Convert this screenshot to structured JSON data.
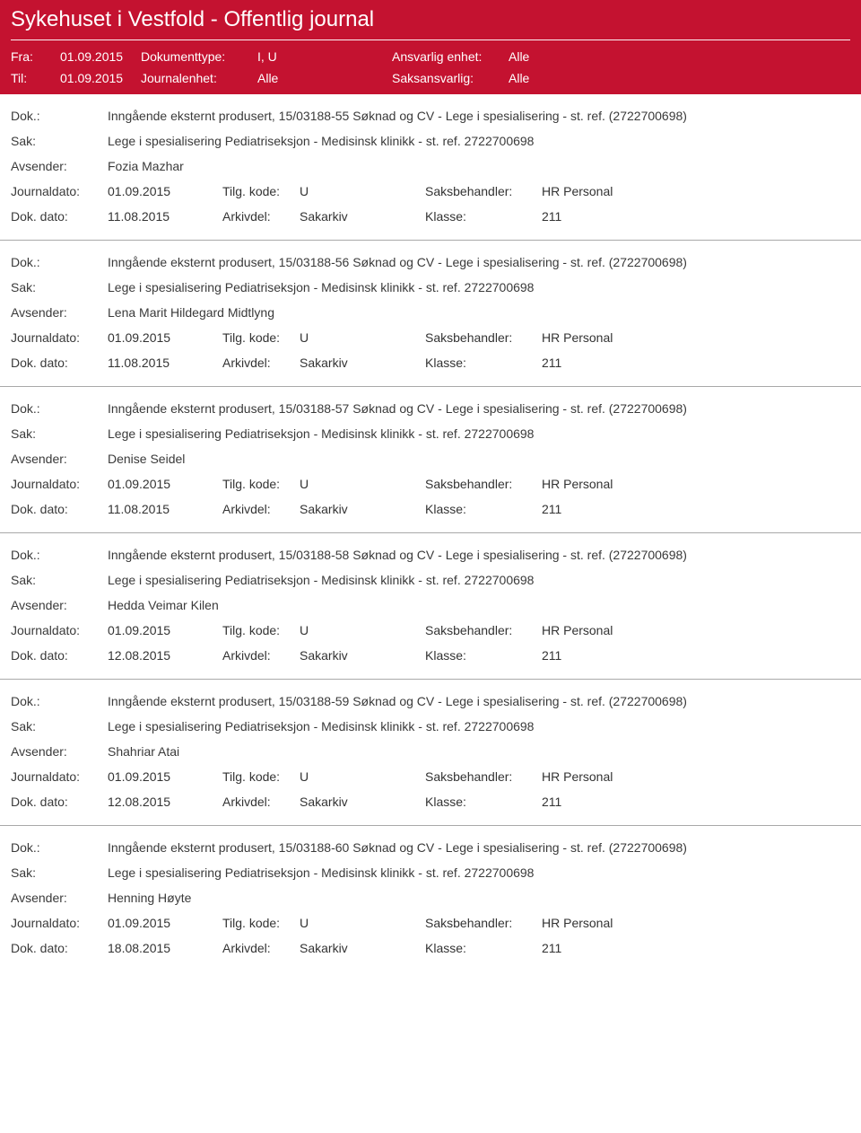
{
  "colors": {
    "header_bg": "#c41230",
    "header_text": "#ffffff",
    "body_text": "#3a3a3a",
    "divider": "#a9a9a9"
  },
  "header": {
    "title": "Sykehuset i Vestfold - Offentlig journal",
    "fra_label": "Fra:",
    "fra_value": "01.09.2015",
    "til_label": "Til:",
    "til_value": "01.09.2015",
    "doktype_label": "Dokumenttype:",
    "doktype_value": "I, U",
    "journalenhet_label": "Journalenhet:",
    "journalenhet_value": "Alle",
    "ansvarlig_label": "Ansvarlig enhet:",
    "ansvarlig_value": "Alle",
    "saksansvarlig_label": "Saksansvarlig:",
    "saksansvarlig_value": "Alle"
  },
  "labels": {
    "dok": "Dok.:",
    "sak": "Sak:",
    "avsender": "Avsender:",
    "journaldato": "Journaldato:",
    "tilgkode": "Tilg. kode:",
    "saksbehandler": "Saksbehandler:",
    "dokdato": "Dok. dato:",
    "arkivdel": "Arkivdel:",
    "klasse": "Klasse:"
  },
  "entries": [
    {
      "dok": "Inngående eksternt produsert, 15/03188-55 Søknad og CV - Lege i spesialisering - st. ref. (2722700698)",
      "sak": "Lege i spesialisering Pediatriseksjon - Medisinsk klinikk - st. ref. 2722700698",
      "avsender": "Fozia Mazhar",
      "journaldato": "01.09.2015",
      "tilgkode": "U",
      "saksbehandler": "HR Personal",
      "dokdato": "11.08.2015",
      "arkivdel": "Sakarkiv",
      "klasse": "211"
    },
    {
      "dok": "Inngående eksternt produsert, 15/03188-56 Søknad og CV - Lege i spesialisering - st. ref. (2722700698)",
      "sak": "Lege i spesialisering Pediatriseksjon - Medisinsk klinikk - st. ref. 2722700698",
      "avsender": "Lena Marit Hildegard Midtlyng",
      "journaldato": "01.09.2015",
      "tilgkode": "U",
      "saksbehandler": "HR Personal",
      "dokdato": "11.08.2015",
      "arkivdel": "Sakarkiv",
      "klasse": "211"
    },
    {
      "dok": "Inngående eksternt produsert, 15/03188-57 Søknad og CV - Lege i spesialisering - st. ref. (2722700698)",
      "sak": "Lege i spesialisering Pediatriseksjon - Medisinsk klinikk - st. ref. 2722700698",
      "avsender": "Denise Seidel",
      "journaldato": "01.09.2015",
      "tilgkode": "U",
      "saksbehandler": "HR Personal",
      "dokdato": "11.08.2015",
      "arkivdel": "Sakarkiv",
      "klasse": "211"
    },
    {
      "dok": "Inngående eksternt produsert, 15/03188-58 Søknad og CV - Lege i spesialisering - st. ref. (2722700698)",
      "sak": "Lege i spesialisering Pediatriseksjon - Medisinsk klinikk - st. ref. 2722700698",
      "avsender": "Hedda Veimar Kilen",
      "journaldato": "01.09.2015",
      "tilgkode": "U",
      "saksbehandler": "HR Personal",
      "dokdato": "12.08.2015",
      "arkivdel": "Sakarkiv",
      "klasse": "211"
    },
    {
      "dok": "Inngående eksternt produsert, 15/03188-59 Søknad og CV - Lege i spesialisering - st. ref. (2722700698)",
      "sak": "Lege i spesialisering Pediatriseksjon - Medisinsk klinikk - st. ref. 2722700698",
      "avsender": "Shahriar Atai",
      "journaldato": "01.09.2015",
      "tilgkode": "U",
      "saksbehandler": "HR Personal",
      "dokdato": "12.08.2015",
      "arkivdel": "Sakarkiv",
      "klasse": "211"
    },
    {
      "dok": "Inngående eksternt produsert, 15/03188-60 Søknad og CV - Lege i spesialisering - st. ref. (2722700698)",
      "sak": "Lege i spesialisering Pediatriseksjon - Medisinsk klinikk - st. ref. 2722700698",
      "avsender": "Henning Høyte",
      "journaldato": "01.09.2015",
      "tilgkode": "U",
      "saksbehandler": "HR Personal",
      "dokdato": "18.08.2015",
      "arkivdel": "Sakarkiv",
      "klasse": "211"
    }
  ]
}
